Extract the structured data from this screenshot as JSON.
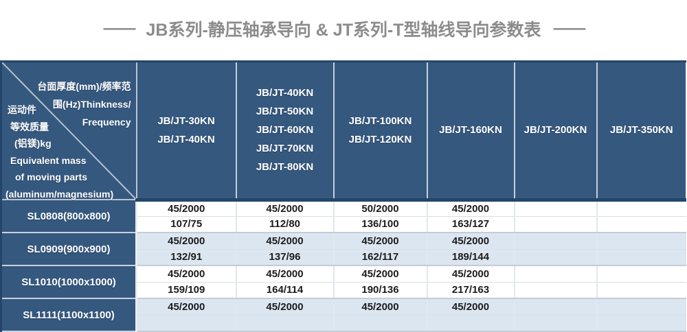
{
  "title": {
    "dash_left": "——",
    "text": "JB系列-静压轴承导向 & JT系列-T型轴线导向参数表",
    "dash_right": "——"
  },
  "colors": {
    "header_blue": "#35587f",
    "dark_navy_border": "#24466b",
    "stripe_blue": "#dce6f1",
    "stripe_white": "#ffffff",
    "title_gray": "#8c8c8c",
    "cell_text": "#1c1c1c",
    "diagonal_line": "#bac4d0"
  },
  "table": {
    "corner": {
      "top_right_lines": [
        "台面厚度(mm)/频率范",
        "围(Hz)Thinkness/",
        "Frequency"
      ],
      "bottom_left_lines": [
        "运动件",
        "等效质量",
        "(铝镁)kg",
        "Equivalent mass",
        "of moving parts",
        "(aluminum/magnesium)"
      ]
    },
    "columns": [
      {
        "lines": [
          "JB/JT-30KN",
          "JB/JT-40KN"
        ]
      },
      {
        "lines": [
          "JB/JT-40KN",
          "JB/JT-50KN",
          "JB/JT-60KN",
          "JB/JT-70KN",
          "JB/JT-80KN"
        ]
      },
      {
        "lines": [
          "JB/JT-100KN",
          "JB/JT-120KN"
        ]
      },
      {
        "lines": [
          "JB/JT-160KN"
        ]
      },
      {
        "lines": [
          "JB/JT-200KN"
        ]
      },
      {
        "lines": [
          "JB/JT-350KN"
        ]
      }
    ],
    "rows": [
      {
        "label": "SL0808(800x800)",
        "stripe": "white",
        "thickness_frequency": [
          "45/2000",
          "45/2000",
          "50/2000",
          "45/2000",
          "",
          ""
        ],
        "equivalent_mass": [
          "107/75",
          "112/80",
          "136/100",
          "163/127",
          "",
          ""
        ]
      },
      {
        "label": "SL0909(900x900)",
        "stripe": "blue",
        "thickness_frequency": [
          "45/2000",
          "45/2000",
          "45/2000",
          "45/2000",
          "",
          ""
        ],
        "equivalent_mass": [
          "132/91",
          "137/96",
          "162/117",
          "189/144",
          "",
          ""
        ]
      },
      {
        "label": "SL1010(1000x1000)",
        "stripe": "white",
        "thickness_frequency": [
          "45/2000",
          "45/2000",
          "45/2000",
          "45/2000",
          "",
          ""
        ],
        "equivalent_mass": [
          "159/109",
          "164/114",
          "190/136",
          "217/163",
          "",
          ""
        ]
      },
      {
        "label": "SL1111(1100x1100)",
        "stripe": "blue",
        "thickness_frequency": [
          "45/2000",
          "45/2000",
          "45/2000",
          "45/2000",
          "",
          ""
        ],
        "equivalent_mass": [
          "",
          "",
          "",
          "",
          "",
          ""
        ]
      }
    ]
  }
}
